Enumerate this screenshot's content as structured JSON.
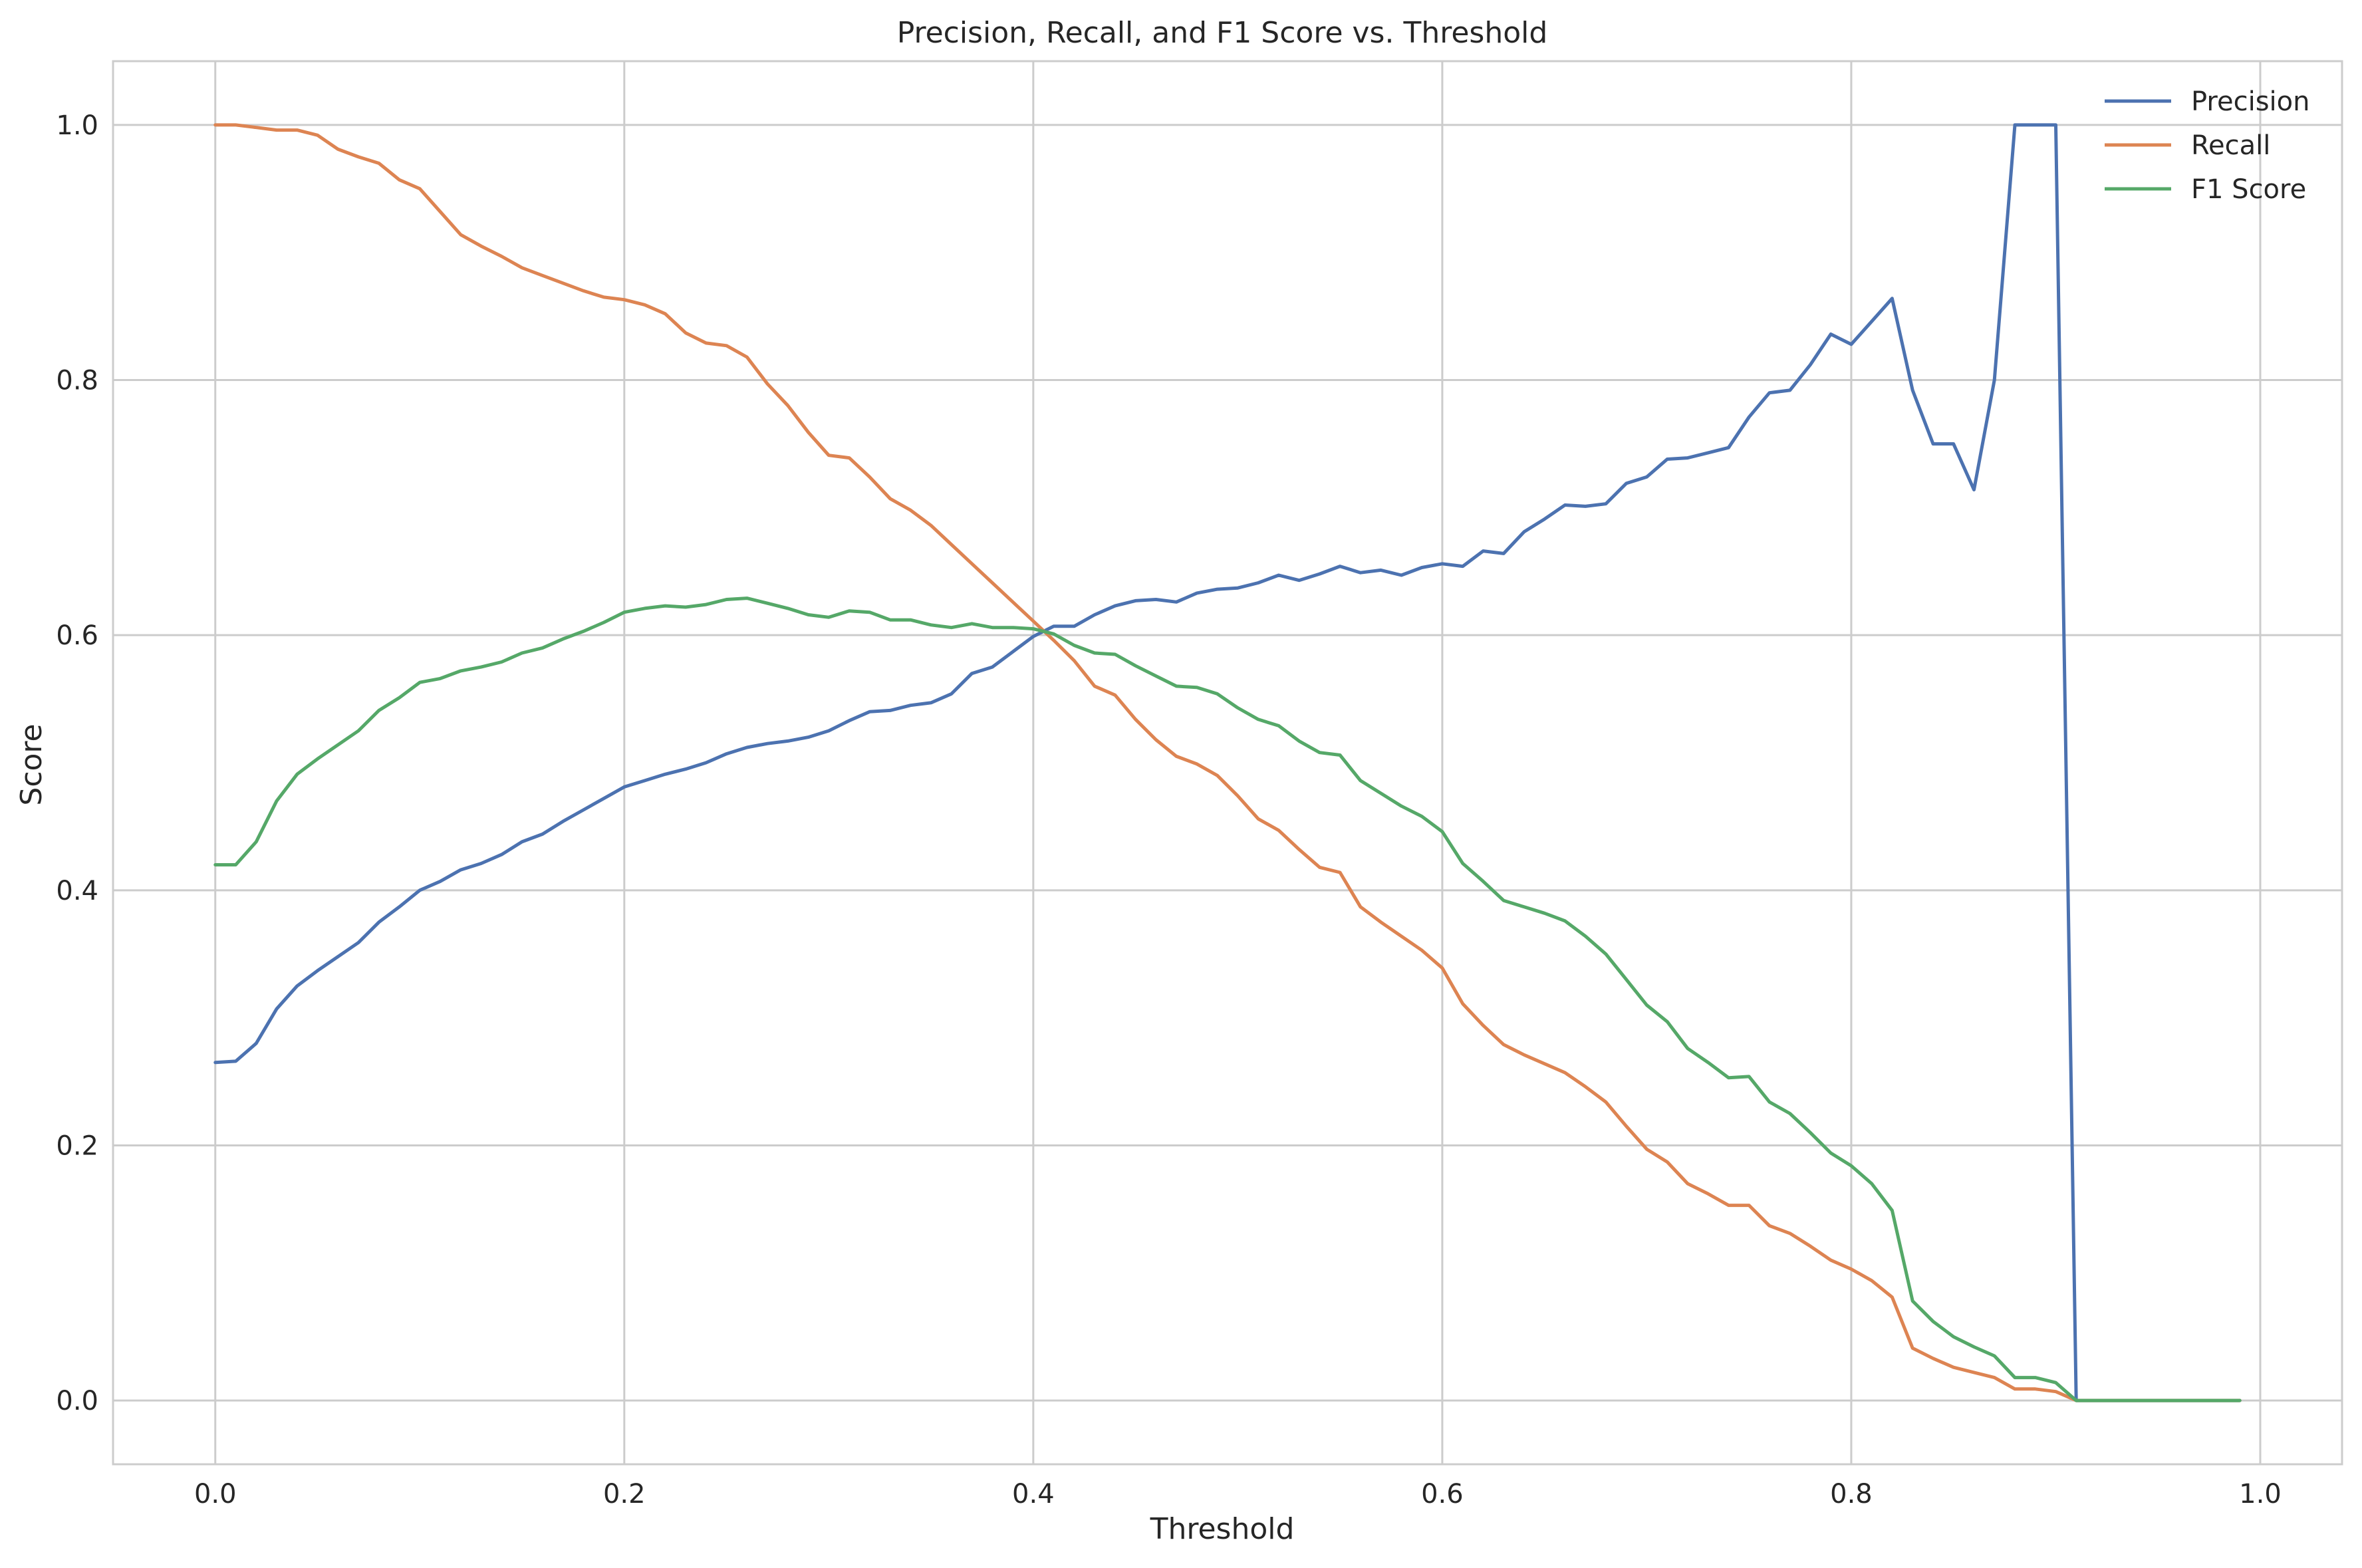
{
  "chart_data": {
    "type": "line",
    "title": "Precision, Recall, and F1 Score vs. Threshold",
    "xlabel": "Threshold",
    "ylabel": "Score",
    "xlim": [
      -0.05,
      1.04
    ],
    "ylim": [
      -0.05,
      1.05
    ],
    "xticks": [
      "0.0",
      "0.2",
      "0.4",
      "0.6",
      "0.8",
      "1.0"
    ],
    "xtick_values": [
      0.0,
      0.2,
      0.4,
      0.6,
      0.8,
      1.0
    ],
    "yticks": [
      "0.0",
      "0.2",
      "0.4",
      "0.6",
      "0.8",
      "1.0"
    ],
    "ytick_values": [
      0.0,
      0.2,
      0.4,
      0.6,
      0.8,
      1.0
    ],
    "grid": true,
    "legend_position": "top-right",
    "x": [
      0.0,
      0.01,
      0.02,
      0.03,
      0.04,
      0.05,
      0.06,
      0.07,
      0.08,
      0.09,
      0.1,
      0.11,
      0.12,
      0.13,
      0.14,
      0.15,
      0.16,
      0.17,
      0.18,
      0.19,
      0.2,
      0.21,
      0.22,
      0.23,
      0.24,
      0.25,
      0.26,
      0.27,
      0.28,
      0.29,
      0.3,
      0.31,
      0.32,
      0.33,
      0.34,
      0.35,
      0.36,
      0.37,
      0.38,
      0.39,
      0.4,
      0.41,
      0.42,
      0.43,
      0.44,
      0.45,
      0.46,
      0.47,
      0.48,
      0.49,
      0.5,
      0.51,
      0.52,
      0.53,
      0.54,
      0.55,
      0.56,
      0.57,
      0.58,
      0.59,
      0.6,
      0.61,
      0.62,
      0.63,
      0.64,
      0.65,
      0.66,
      0.67,
      0.68,
      0.69,
      0.7,
      0.71,
      0.72,
      0.73,
      0.74,
      0.75,
      0.76,
      0.77,
      0.78,
      0.79,
      0.8,
      0.81,
      0.82,
      0.83,
      0.84,
      0.85,
      0.86,
      0.87,
      0.88,
      0.89,
      0.9,
      0.91,
      0.92,
      0.93,
      0.94,
      0.95,
      0.96,
      0.97,
      0.98,
      0.99
    ],
    "series": [
      {
        "name": "Precision",
        "color": "#4c72b0",
        "values": [
          0.265,
          0.266,
          0.28,
          0.307,
          0.325,
          0.337,
          0.348,
          0.359,
          0.375,
          0.387,
          0.4,
          0.407,
          0.416,
          0.421,
          0.428,
          0.438,
          0.444,
          0.454,
          0.463,
          0.472,
          0.481,
          0.486,
          0.491,
          0.495,
          0.5,
          0.507,
          0.512,
          0.515,
          0.517,
          0.52,
          0.525,
          0.533,
          0.54,
          0.541,
          0.545,
          0.547,
          0.554,
          0.57,
          0.575,
          0.587,
          0.599,
          0.607,
          0.607,
          0.616,
          0.623,
          0.627,
          0.628,
          0.626,
          0.633,
          0.636,
          0.637,
          0.641,
          0.647,
          0.643,
          0.648,
          0.654,
          0.649,
          0.651,
          0.647,
          0.653,
          0.656,
          0.654,
          0.666,
          0.664,
          0.681,
          0.691,
          0.702,
          0.701,
          0.703,
          0.719,
          0.724,
          0.738,
          0.739,
          0.743,
          0.747,
          0.771,
          0.79,
          0.792,
          0.812,
          0.836,
          0.828,
          0.846,
          0.864,
          0.792,
          0.75,
          0.75,
          0.714,
          0.8,
          1.0,
          1.0,
          1.0,
          0.0,
          0.0,
          0.0,
          0.0,
          0.0,
          0.0,
          0.0,
          0.0,
          0.0
        ]
      },
      {
        "name": "Recall",
        "color": "#dd8452",
        "values": [
          1.0,
          1.0,
          0.998,
          0.996,
          0.996,
          0.992,
          0.981,
          0.975,
          0.97,
          0.957,
          0.95,
          0.932,
          0.914,
          0.905,
          0.897,
          0.888,
          0.882,
          0.876,
          0.87,
          0.865,
          0.863,
          0.859,
          0.852,
          0.837,
          0.829,
          0.827,
          0.818,
          0.797,
          0.78,
          0.759,
          0.741,
          0.739,
          0.724,
          0.707,
          0.698,
          0.686,
          0.671,
          0.656,
          0.641,
          0.626,
          0.611,
          0.596,
          0.58,
          0.56,
          0.553,
          0.534,
          0.518,
          0.505,
          0.499,
          0.49,
          0.474,
          0.456,
          0.447,
          0.432,
          0.418,
          0.414,
          0.387,
          0.375,
          0.364,
          0.353,
          0.339,
          0.311,
          0.294,
          0.279,
          0.271,
          0.264,
          0.257,
          0.246,
          0.234,
          0.215,
          0.197,
          0.187,
          0.17,
          0.162,
          0.153,
          0.153,
          0.137,
          0.131,
          0.121,
          0.11,
          0.103,
          0.094,
          0.081,
          0.041,
          0.033,
          0.026,
          0.022,
          0.018,
          0.009,
          0.009,
          0.007,
          0.0,
          0.0,
          0.0,
          0.0,
          0.0,
          0.0,
          0.0,
          0.0,
          0.0
        ]
      },
      {
        "name": "F1 Score",
        "color": "#55a868",
        "values": [
          0.42,
          0.42,
          0.438,
          0.47,
          0.491,
          0.503,
          0.514,
          0.525,
          0.541,
          0.551,
          0.563,
          0.566,
          0.572,
          0.575,
          0.579,
          0.586,
          0.59,
          0.597,
          0.603,
          0.61,
          0.618,
          0.621,
          0.623,
          0.622,
          0.624,
          0.628,
          0.629,
          0.625,
          0.621,
          0.616,
          0.614,
          0.619,
          0.618,
          0.612,
          0.612,
          0.608,
          0.606,
          0.609,
          0.606,
          0.606,
          0.605,
          0.601,
          0.592,
          0.586,
          0.585,
          0.576,
          0.568,
          0.56,
          0.559,
          0.554,
          0.543,
          0.534,
          0.529,
          0.517,
          0.508,
          0.506,
          0.486,
          0.476,
          0.466,
          0.458,
          0.446,
          0.421,
          0.407,
          0.392,
          0.387,
          0.382,
          0.376,
          0.364,
          0.35,
          0.33,
          0.31,
          0.297,
          0.276,
          0.265,
          0.253,
          0.254,
          0.234,
          0.225,
          0.21,
          0.194,
          0.184,
          0.17,
          0.149,
          0.078,
          0.062,
          0.05,
          0.042,
          0.035,
          0.018,
          0.018,
          0.014,
          0.0,
          0.0,
          0.0,
          0.0,
          0.0,
          0.0,
          0.0,
          0.0,
          0.0
        ]
      }
    ]
  }
}
